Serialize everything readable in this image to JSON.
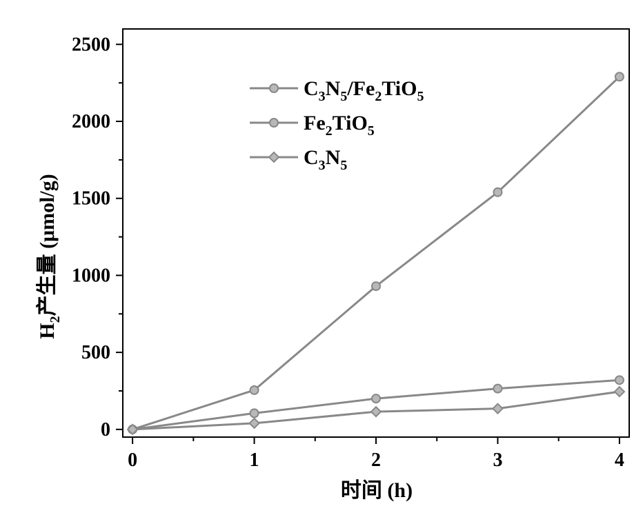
{
  "chart_data": {
    "type": "line",
    "x": [
      0,
      1,
      2,
      3,
      4
    ],
    "xlabel": "时间 (h)",
    "ylabel": {
      "main": "H",
      "sub": "2",
      "rest": "产生量 (μmol/g)"
    },
    "xlim": [
      -0.08,
      4.08
    ],
    "ylim": [
      -50,
      2600
    ],
    "xticks": [
      "0",
      "1",
      "2",
      "3",
      "4"
    ],
    "yticks": [
      "0",
      "500",
      "1000",
      "1500",
      "2000",
      "2500"
    ],
    "ytick_values": [
      0,
      500,
      1000,
      1500,
      2000,
      2500
    ],
    "grid": false,
    "legend_position": "top-center",
    "series": [
      {
        "legend": [
          {
            "text": "C",
            "sub": false
          },
          {
            "text": "3",
            "sub": true
          },
          {
            "text": "N",
            "sub": false
          },
          {
            "text": "5",
            "sub": true
          },
          {
            "text": "/Fe",
            "sub": false
          },
          {
            "text": "2",
            "sub": true
          },
          {
            "text": "TiO",
            "sub": false
          },
          {
            "text": "5",
            "sub": true
          }
        ],
        "marker": "circle",
        "values": [
          0,
          255,
          930,
          1540,
          2290
        ]
      },
      {
        "legend": [
          {
            "text": "Fe",
            "sub": false
          },
          {
            "text": "2",
            "sub": true
          },
          {
            "text": "TiO",
            "sub": false
          },
          {
            "text": "5",
            "sub": true
          }
        ],
        "marker": "circle",
        "values": [
          0,
          105,
          200,
          265,
          320
        ]
      },
      {
        "legend": [
          {
            "text": "C",
            "sub": false
          },
          {
            "text": "3",
            "sub": true
          },
          {
            "text": "N",
            "sub": false
          },
          {
            "text": "5",
            "sub": true
          }
        ],
        "marker": "diamond",
        "values": [
          0,
          40,
          115,
          135,
          245
        ]
      }
    ],
    "colors": {
      "line": "#888888",
      "marker_fill": "#b8b8b8",
      "axis": "#000000"
    }
  }
}
